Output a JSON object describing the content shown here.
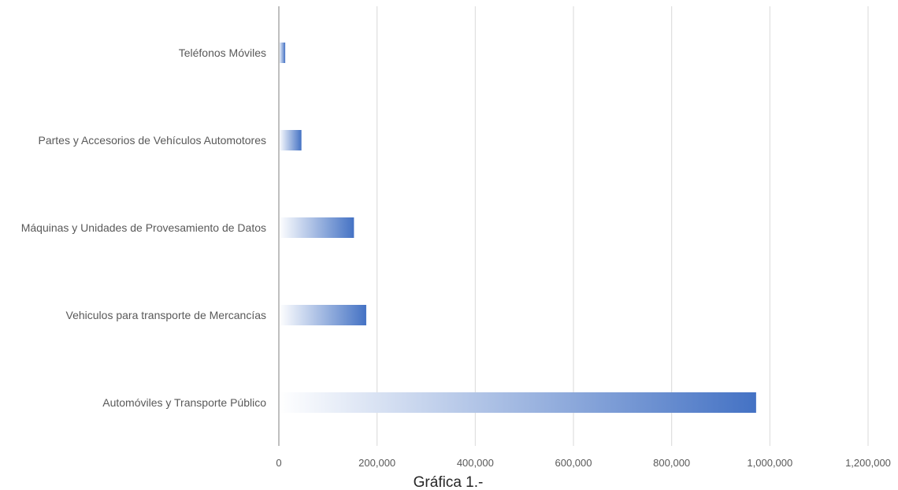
{
  "chart_data": {
    "type": "bar",
    "orientation": "horizontal",
    "categories": [
      "Teléfonos Móviles",
      "Partes y Accesorios de Vehículos Automotores",
      "Máquinas y Unidades de Provesamiento de Datos",
      "Vehiculos para transporte de Mercancías",
      "Automóviles y Transporte Público"
    ],
    "values": [
      13000,
      46000,
      153000,
      178000,
      972000
    ],
    "xlim": [
      0,
      1200000
    ],
    "xticks": [
      0,
      200000,
      400000,
      600000,
      800000,
      1000000,
      1200000
    ],
    "xtick_labels": [
      "0",
      "200,000",
      "400,000",
      "600,000",
      "800,000",
      "1,000,000",
      "1,200,000"
    ],
    "grid": "vertical",
    "legend": "none",
    "caption": "Gráfica 1.-",
    "colors": {
      "bar": "#4472c4",
      "gridline": "#d9d9d9",
      "axis": "#bfbfbf"
    }
  }
}
